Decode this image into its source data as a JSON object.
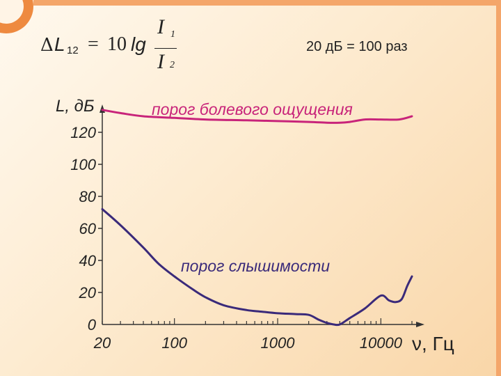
{
  "formula": {
    "delta": "Δ",
    "L": "L",
    "subscript": "12",
    "equals": "=",
    "ten": "10",
    "lg": "lg",
    "numerator": "I",
    "numerator_sub": "1",
    "denominator": "I",
    "denominator_sub": "2"
  },
  "note": "20 дБ = 100 раз",
  "colors": {
    "pain_curve": "#c8247a",
    "hearing_curve": "#3a2a7a",
    "axis": "#333333"
  },
  "chart_data": {
    "type": "line",
    "ylabel": "L, дБ",
    "xlabel": "ν, Гц",
    "x_scale": "log",
    "xlim": [
      20,
      20000
    ],
    "ylim": [
      0,
      140
    ],
    "y_ticks": [
      {
        "value": 0,
        "label": "0"
      },
      {
        "value": 20,
        "label": "20"
      },
      {
        "value": 40,
        "label": "40"
      },
      {
        "value": 60,
        "label": "60"
      },
      {
        "value": 80,
        "label": "80"
      },
      {
        "value": 100,
        "label": "100"
      },
      {
        "value": 120,
        "label": "120"
      }
    ],
    "x_ticks": [
      {
        "value": 20,
        "label": "20"
      },
      {
        "value": 100,
        "label": "100"
      },
      {
        "value": 1000,
        "label": "1000"
      },
      {
        "value": 10000,
        "label": "10000"
      }
    ],
    "series": [
      {
        "name": "порог болевого ощущения",
        "label": "порог болевого ощущения",
        "x": [
          20,
          30,
          50,
          100,
          200,
          500,
          1000,
          2000,
          3000,
          4000,
          5000,
          7000,
          10000,
          15000,
          20000
        ],
        "values": [
          134,
          132,
          130,
          129,
          128,
          127.5,
          127,
          126.5,
          126,
          126,
          126.5,
          128,
          128,
          128,
          130
        ]
      },
      {
        "name": "порог слышимости",
        "label": "порог слышимости",
        "x": [
          20,
          30,
          50,
          70,
          100,
          150,
          200,
          300,
          500,
          700,
          1000,
          1500,
          2000,
          2500,
          3000,
          3500,
          4000,
          5000,
          7000,
          10000,
          12000,
          14000,
          16000,
          18000,
          20000
        ],
        "values": [
          72,
          62,
          48,
          38,
          30,
          22,
          17,
          12,
          9,
          8,
          7,
          6.5,
          6,
          3,
          1,
          0,
          0,
          4,
          10,
          18,
          15,
          14,
          16,
          24,
          30
        ]
      }
    ]
  }
}
